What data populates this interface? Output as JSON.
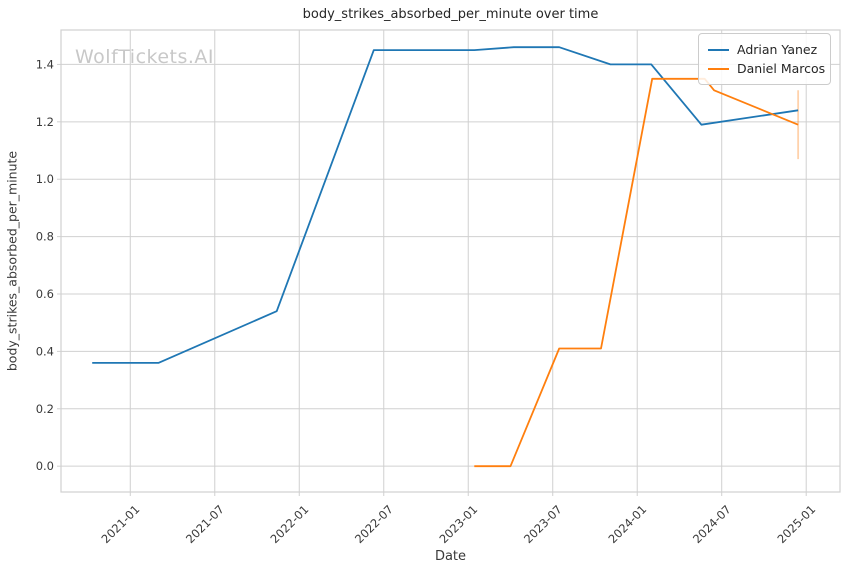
{
  "watermark": {
    "text": "WolfTickets.AI",
    "color": "#c8c8c8"
  },
  "chart_data": {
    "type": "line",
    "title": "body_strikes_absorbed_per_minute over time",
    "xlabel": "Date",
    "ylabel": "body_strikes_absorbed_per_minute",
    "grid": true,
    "legend_position": "upper right",
    "background_color": "#ffffff",
    "grid_color": "#d0d0d0",
    "text_color": "#3a3a3a",
    "x_ticks": [
      "2021-01",
      "2021-07",
      "2022-01",
      "2022-07",
      "2023-01",
      "2023-07",
      "2024-01",
      "2024-07",
      "2025-01"
    ],
    "y_ticks": [
      "0.0",
      "0.2",
      "0.4",
      "0.6",
      "0.8",
      "1.0",
      "1.2",
      "1.4"
    ],
    "xlim_years": [
      2020.59,
      2025.2
    ],
    "ylim": [
      -0.09,
      1.52
    ],
    "series": [
      {
        "name": "Adrian Yanez",
        "color": "#1f77b4",
        "points": [
          [
            "2020-10-10",
            0.36
          ],
          [
            "2021-03-01",
            0.36
          ],
          [
            "2021-11-13",
            0.54
          ],
          [
            "2022-06-10",
            1.45
          ],
          [
            "2023-01-14",
            1.45
          ],
          [
            "2023-04-08",
            1.46
          ],
          [
            "2023-07-15",
            1.46
          ],
          [
            "2023-11-04",
            1.4
          ],
          [
            "2024-02-01",
            1.4
          ],
          [
            "2024-05-18",
            1.19
          ],
          [
            "2024-12-14",
            1.24
          ]
        ]
      },
      {
        "name": "Daniel Marcos",
        "color": "#ff7f0e",
        "points": [
          [
            "2023-01-14",
            0.0
          ],
          [
            "2023-04-01",
            0.0
          ],
          [
            "2023-07-15",
            0.41
          ],
          [
            "2023-10-14",
            0.41
          ],
          [
            "2024-02-03",
            1.35
          ],
          [
            "2024-05-25",
            1.35
          ],
          [
            "2024-06-15",
            1.31
          ],
          [
            "2024-12-14",
            1.19
          ]
        ],
        "error_bars": [
          {
            "x": "2024-12-14",
            "low": 1.07,
            "high": 1.31
          }
        ]
      }
    ]
  }
}
